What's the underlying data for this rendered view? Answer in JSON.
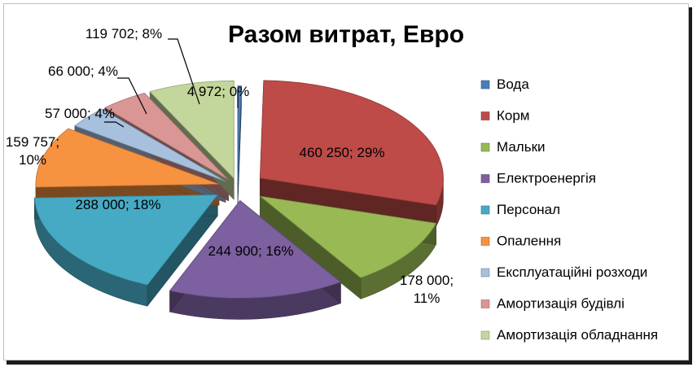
{
  "chart_data": {
    "type": "pie",
    "title": "Разом витрат, Евро",
    "slices": [
      {
        "name": "Вода",
        "value": 4972,
        "label": "4 972; 0%",
        "color": "#4a7ebb"
      },
      {
        "name": "Корм",
        "value": 460250,
        "label": "460 250; 29%",
        "color": "#be4b48"
      },
      {
        "name": "Мальки",
        "value": 178000,
        "label": "178 000; 11%",
        "label_lines": [
          "178 000;",
          "11%"
        ],
        "color": "#98b954"
      },
      {
        "name": "Електроенергія",
        "value": 244900,
        "label": "244 900; 16%",
        "color": "#7d60a0"
      },
      {
        "name": "Персонал",
        "value": 288000,
        "label": "288 000; 18%",
        "color": "#46aac5"
      },
      {
        "name": "Опалення",
        "value": 159757,
        "label": "159 757; 10%",
        "label_lines": [
          "159 757;",
          "10%"
        ],
        "color": "#f69240"
      },
      {
        "name": "Експлуатаційні розходи",
        "value": 57000,
        "label": "57 000; 4%",
        "color": "#a7c0de"
      },
      {
        "name": "Амортизація будівлі",
        "value": 66000,
        "label": "66 000; 4%",
        "color": "#da9695"
      },
      {
        "name": "Амортизація обладнання",
        "value": 119702,
        "label": "119 702; 8%",
        "color": "#c3d69b"
      }
    ],
    "legend_position": "right",
    "style": "3d-exploded-pie"
  }
}
